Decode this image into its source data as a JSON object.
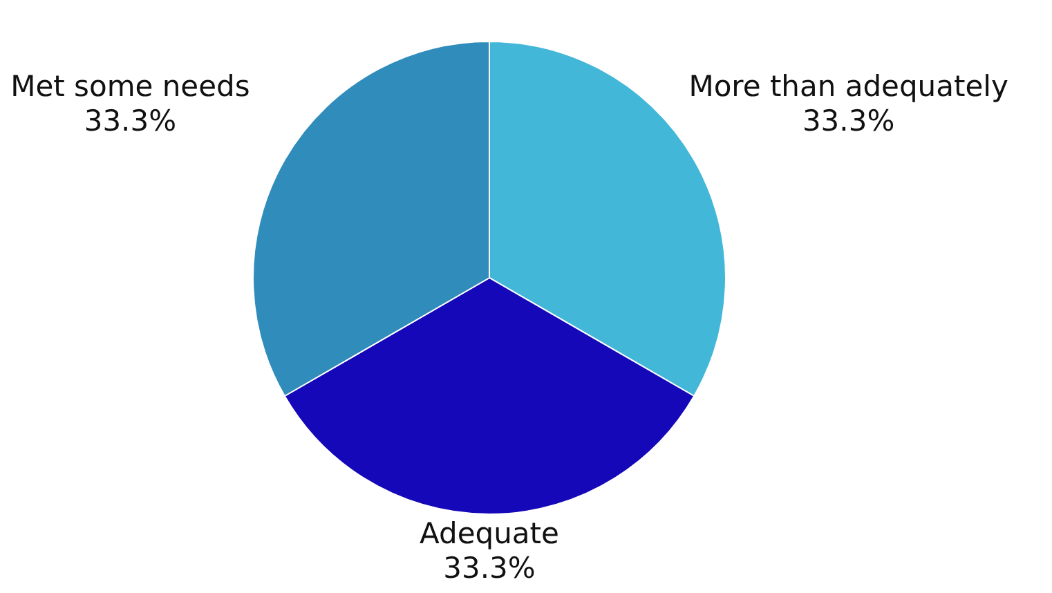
{
  "chart_data": {
    "type": "pie",
    "categories": [
      "More than adequately",
      "Adequate",
      "Met some needs"
    ],
    "values": [
      33.3,
      33.3,
      33.3
    ],
    "value_labels": [
      "33.3%",
      "33.3%",
      "33.3%"
    ],
    "colors": [
      "#43b7d8",
      "#1508b8",
      "#2f8cbb"
    ]
  }
}
